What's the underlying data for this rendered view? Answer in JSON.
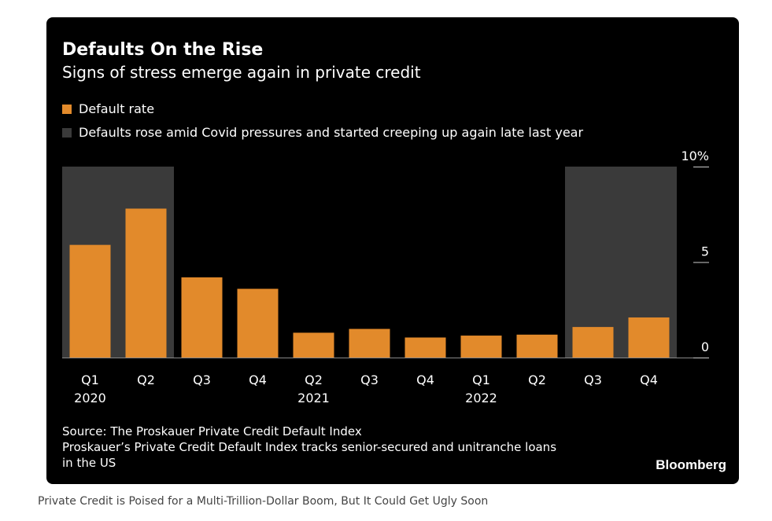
{
  "chart": {
    "title": "Defaults On the Rise",
    "subtitle": "Signs of stress emerge again in private credit",
    "legend": {
      "default_rate": "Default rate",
      "shaded_note": "Defaults rose amid Covid pressures and started creeping up again late last year"
    },
    "source": "Source: The Proskauer Private Credit Default Index",
    "note": "Proskauer’s Private Credit Default Index tracks senior-secured and unitranche loans in the US",
    "note_line1": "Proskauer’s Private Credit Default Index tracks senior-secured and unitranche loans",
    "note_line2": "in the US",
    "brand": "Bloomberg"
  },
  "caption": "Private Credit is Poised for a Multi-Trillion-Dollar Boom, But It Could Get Ugly Soon",
  "colors": {
    "bar": "#e28a2b",
    "shade": "#3a3a3a",
    "background": "#000000",
    "text": "#ffffff",
    "gridline": "#cccccc"
  },
  "chart_data": {
    "type": "bar",
    "categories": [
      "Q1",
      "Q2",
      "Q3",
      "Q4",
      "Q2",
      "Q3",
      "Q4",
      "Q1",
      "Q2",
      "Q3",
      "Q4"
    ],
    "year_labels": [
      "2020",
      "",
      "",
      "",
      "2021",
      "",
      "",
      "2022",
      "",
      "",
      ""
    ],
    "values": [
      5.9,
      7.8,
      4.2,
      3.6,
      1.3,
      1.5,
      1.05,
      1.15,
      1.2,
      1.6,
      2.1
    ],
    "shaded": [
      true,
      true,
      false,
      false,
      false,
      false,
      false,
      false,
      false,
      true,
      true
    ],
    "ylim": [
      0,
      10
    ],
    "yticks": [
      0,
      5,
      10
    ],
    "ytick_labels": [
      "0",
      "5",
      "10%"
    ],
    "yaxis_position": "right",
    "legend_position": "top-left",
    "grid": false
  }
}
